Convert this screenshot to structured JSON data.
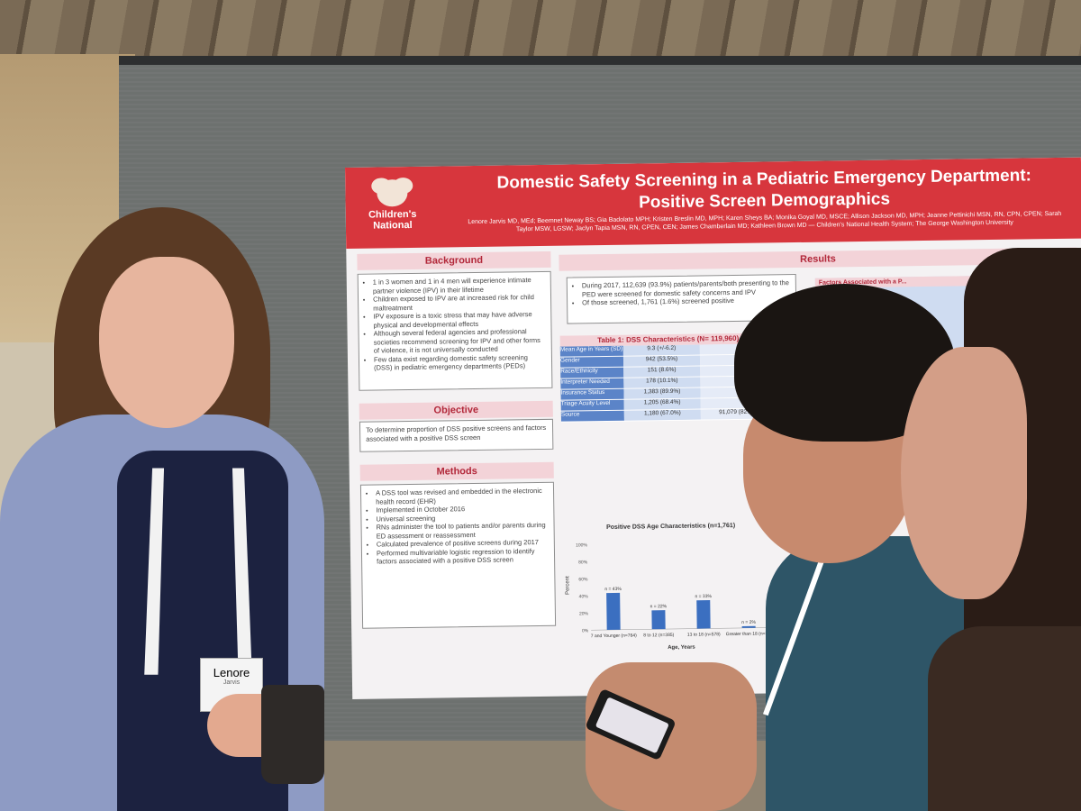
{
  "poster": {
    "logo": "Children's National",
    "title": "Domestic Safety Screening in a Pediatric Emergency Department: Positive Screen Demographics",
    "authors": "Lenore Jarvis MD, MEd; Beemnet Neway BS; Gia Badolato MPH; Kristen Breslin MD, MPH; Karen Sheys BA; Monika Goyal MD, MSCE; Allison Jackson MD, MPH; Jeanne Pettinichi MSN, RN, CPN, CPEN; Sarah Taylor MSW, LGSW; Jaclyn Tapia MSN, RN, CPEN, CEN; James Chamberlain MD; Kathleen Brown MD — Children's National Health System; The George Washington University",
    "background_heading": "Background",
    "background_items": [
      "1 in 3 women and 1 in 4 men will experience intimate partner violence (IPV) in their lifetime",
      "Children exposed to IPV are at increased risk for child maltreatment",
      "IPV exposure is a toxic stress that may have adverse physical and developmental effects",
      "Although several federal agencies and professional societies recommend screening for IPV and other forms of violence, it is not universally conducted",
      "Few data exist regarding domestic safety screening (DSS) in pediatric emergency departments (PEDs)"
    ],
    "objective_heading": "Objective",
    "objective_text": "To determine proportion of DSS positive screens and factors associated with a positive DSS screen",
    "methods_heading": "Methods",
    "methods_items": [
      "A DSS tool was revised and embedded in the electronic health record (EHR)",
      "Implemented in October 2016",
      "Universal screening",
      "RNs administer the tool to patients and/or parents during ED assessment or reassessment",
      "Calculated prevalence of positive screens during 2017",
      "Performed multivariable logistic regression to identify factors associated with a positive DSS screen"
    ],
    "results_heading": "Results",
    "results_items": [
      "During 2017, 112,639 (93.9%) patients/parents/both presenting to the PED were screened for domestic safety concerns and IPV",
      "Of those screened, 1,761 (1.6%) screened positive"
    ],
    "table1_title": "Table 1: DSS Characteristics (N= 119,960)",
    "table1_rows": [
      [
        "Mean Age in Years (SD)",
        "9.3 (+/-6.2)",
        ""
      ],
      [
        "Gender",
        "942 (53.5%)",
        ""
      ],
      [
        "Race/Ethnicity",
        "151 (8.6%)",
        ""
      ],
      [
        "Interpreter Needed",
        "178 (10.1%)",
        ""
      ],
      [
        "Insurance Status",
        "1,383 (89.9%)",
        ""
      ],
      [
        "Triage Acuity Level",
        "1,205 (68.4%)",
        ""
      ],
      [
        "Source",
        "1,180 (67.0%)",
        "91,079 (82.1%)"
      ]
    ],
    "chart_title": "Positive DSS Age Characteristics (n=1,761)",
    "right_table_title": "Factors Associated with a P..."
  },
  "badge": {
    "name": "Lenore",
    "sub": "Jarvis"
  },
  "chart_data": {
    "type": "bar",
    "title": "Positive DSS Age Characteristics (n=1,761)",
    "categories": [
      "7 and Younger (n=764)",
      "8 to 12 (n=385)",
      "13 to 18 (n=578)",
      "Greater than 18 (n=34)"
    ],
    "values": [
      43,
      22,
      33,
      2
    ],
    "value_labels": [
      "n = 43%",
      "n = 22%",
      "n = 33%",
      "n = 2%"
    ],
    "xlabel": "Age, Years",
    "ylabel": "Percent",
    "ylim": [
      0,
      100
    ],
    "bar_color": "#3b6fc0"
  }
}
